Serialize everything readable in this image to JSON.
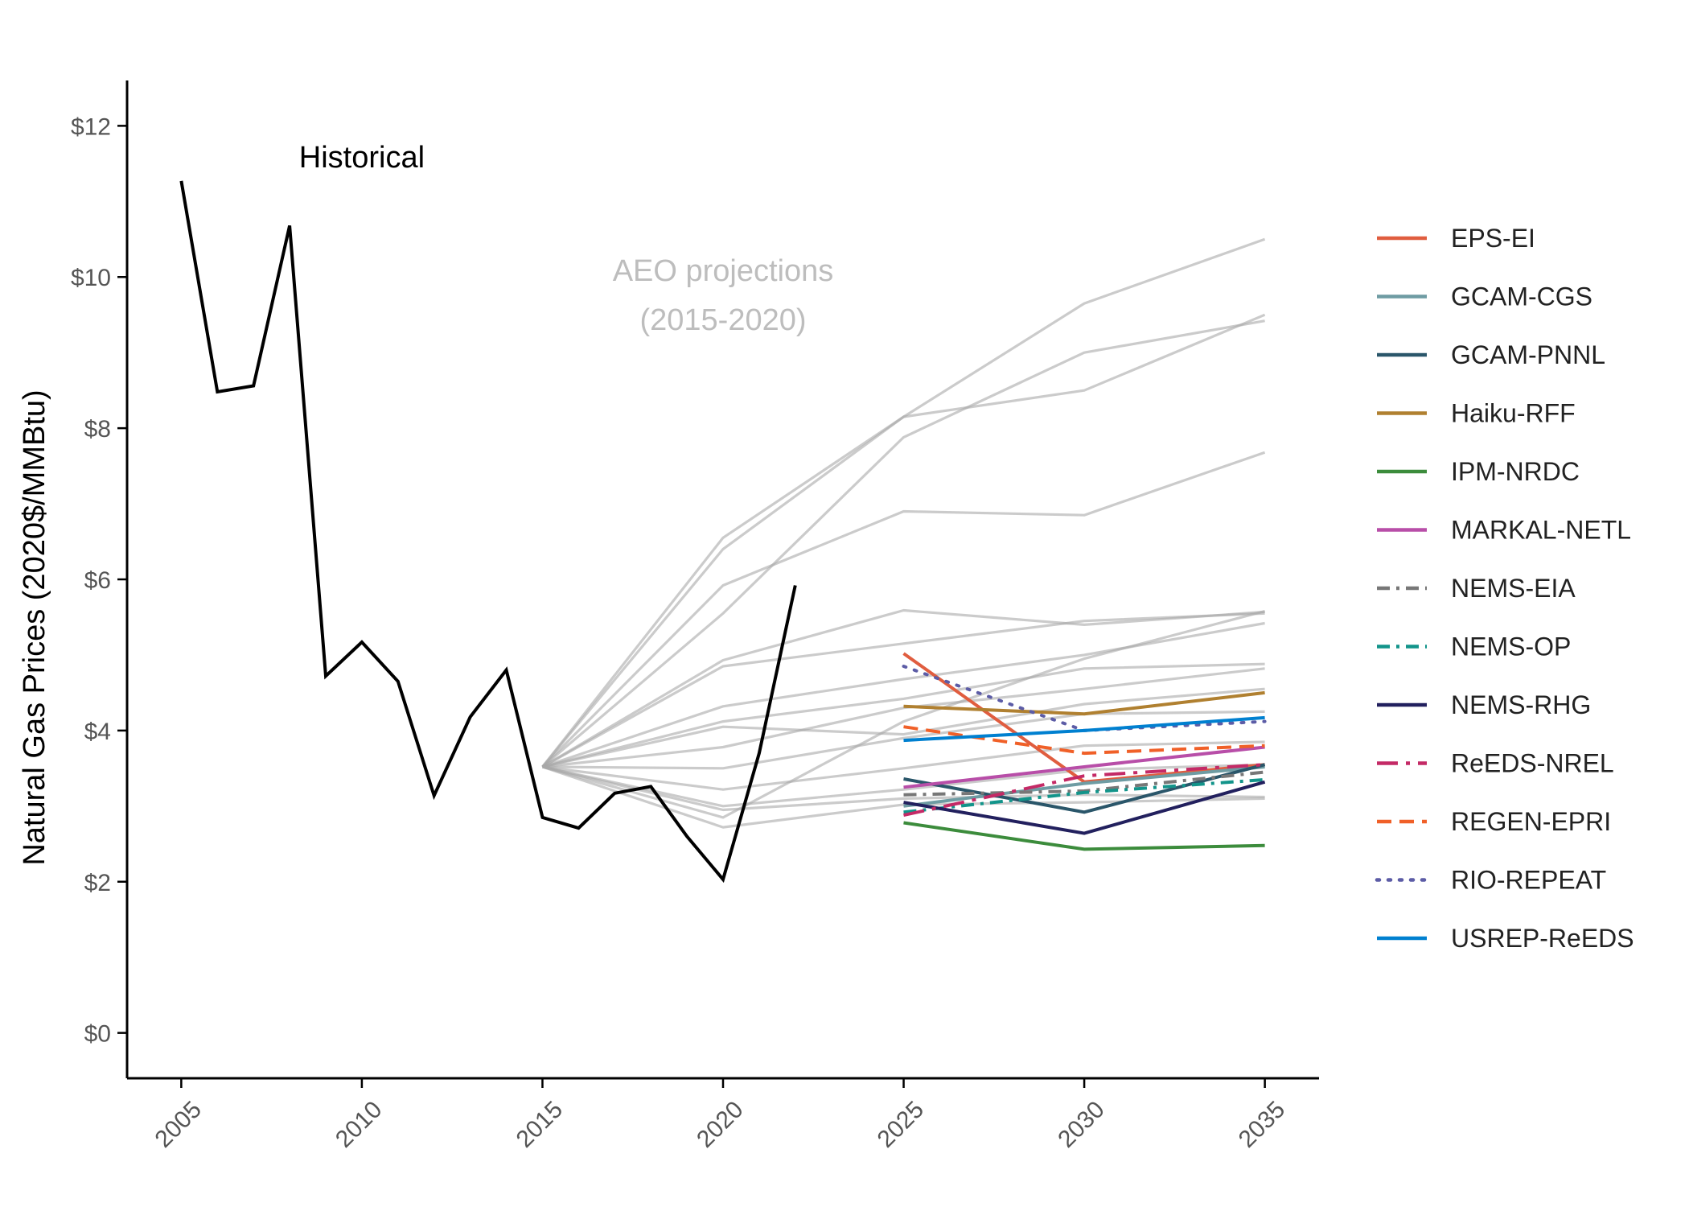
{
  "chart_data": {
    "type": "line",
    "title": "",
    "xlabel": "",
    "ylabel": "Natural Gas Prices (2020$/MMBtu)",
    "xlim": [
      2003.5,
      2036.5
    ],
    "ylim": [
      -0.6,
      12.6
    ],
    "x_ticks": [
      2005,
      2010,
      2015,
      2020,
      2025,
      2030,
      2035
    ],
    "x_tick_labels": [
      "2005",
      "2010",
      "2015",
      "2020",
      "2025",
      "2030",
      "2035"
    ],
    "y_ticks": [
      0,
      2,
      4,
      6,
      8,
      10,
      12
    ],
    "y_tick_labels": [
      "$0",
      "$2",
      "$4",
      "$6",
      "$8",
      "$10",
      "$12"
    ],
    "grid": false,
    "legend_position": "right",
    "annotations": [
      {
        "text": "Historical",
        "x": 2010,
        "y": 11.45,
        "style": "historical"
      },
      {
        "text": "AEO projections",
        "x": 2020,
        "y": 9.95,
        "style": "aeo"
      },
      {
        "text": "(2015-2020)",
        "x": 2020,
        "y": 9.3,
        "style": "aeo"
      }
    ],
    "historical": {
      "color": "#000000",
      "x": [
        2005,
        2006,
        2007,
        2008,
        2009,
        2010,
        2011,
        2012,
        2013,
        2014,
        2015,
        2016,
        2017,
        2018,
        2019,
        2020,
        2021,
        2022
      ],
      "values": [
        11.27,
        8.48,
        8.56,
        10.68,
        4.72,
        5.17,
        4.65,
        3.14,
        4.18,
        4.8,
        2.85,
        2.71,
        3.17,
        3.26,
        2.6,
        2.03,
        3.7,
        5.92
      ]
    },
    "aeo_projections": {
      "color": "#a8a8a8",
      "x": [
        2015,
        2020,
        2025,
        2030,
        2035
      ],
      "lines": [
        [
          3.52,
          6.55,
          8.15,
          9.65,
          10.5
        ],
        [
          3.52,
          6.4,
          8.15,
          8.5,
          9.5
        ],
        [
          3.52,
          5.55,
          7.88,
          9.0,
          9.42
        ],
        [
          3.52,
          5.92,
          6.9,
          6.85,
          7.68
        ],
        [
          3.52,
          4.93,
          5.59,
          5.4,
          5.57
        ],
        [
          3.52,
          4.85,
          5.15,
          5.45,
          5.55
        ],
        [
          3.52,
          4.32,
          4.68,
          5.0,
          5.42
        ],
        [
          3.52,
          4.12,
          4.42,
          4.82,
          4.88
        ],
        [
          3.52,
          3.78,
          4.3,
          4.55,
          4.82
        ],
        [
          3.52,
          4.05,
          3.95,
          4.35,
          4.55
        ],
        [
          3.52,
          3.5,
          3.9,
          4.22,
          4.25
        ],
        [
          3.52,
          3.22,
          3.5,
          3.8,
          3.85
        ],
        [
          3.52,
          3.0,
          3.22,
          3.48,
          3.55
        ],
        [
          3.52,
          2.95,
          3.1,
          3.15,
          3.12
        ],
        [
          3.52,
          2.72,
          3.02,
          3.05,
          3.1
        ],
        [
          3.52,
          2.85,
          4.12,
          4.95,
          5.58
        ]
      ]
    },
    "x": [
      2025,
      2030,
      2035
    ],
    "series": [
      {
        "name": "EPS-EI",
        "color": "#e05d3f",
        "dash": "solid",
        "values": [
          5.02,
          3.32,
          3.55
        ]
      },
      {
        "name": "GCAM-CGS",
        "color": "#6e9ca3",
        "dash": "solid",
        "values": [
          3.0,
          3.3,
          3.52
        ]
      },
      {
        "name": "GCAM-PNNL",
        "color": "#2a566a",
        "dash": "solid",
        "values": [
          3.36,
          2.92,
          3.55
        ]
      },
      {
        "name": "Haiku-RFF",
        "color": "#b08030",
        "dash": "solid",
        "values": [
          4.32,
          4.22,
          4.5
        ]
      },
      {
        "name": "IPM-NRDC",
        "color": "#3c8c3c",
        "dash": "solid",
        "values": [
          2.78,
          2.43,
          2.48
        ]
      },
      {
        "name": "MARKAL-NETL",
        "color": "#b84ea8",
        "dash": "solid",
        "values": [
          3.25,
          3.52,
          3.78
        ]
      },
      {
        "name": "NEMS-EIA",
        "color": "#777777",
        "dash": "dashdot",
        "values": [
          3.15,
          3.2,
          3.45
        ]
      },
      {
        "name": "NEMS-OP",
        "color": "#12948a",
        "dash": "dashdot",
        "values": [
          2.92,
          3.18,
          3.35
        ]
      },
      {
        "name": "NEMS-RHG",
        "color": "#22205e",
        "dash": "solid",
        "values": [
          3.05,
          2.64,
          3.32
        ]
      },
      {
        "name": "ReEDS-NREL",
        "color": "#c42a66",
        "dash": "longdashdot",
        "values": [
          2.88,
          3.4,
          3.55
        ]
      },
      {
        "name": "REGEN-EPRI",
        "color": "#f06028",
        "dash": "dashed",
        "values": [
          4.05,
          3.7,
          3.8
        ]
      },
      {
        "name": "RIO-REPEAT",
        "color": "#5c5ca6",
        "dash": "dotted",
        "values": [
          4.85,
          4.0,
          4.12
        ]
      },
      {
        "name": "USREP-ReEDS",
        "color": "#0080d0",
        "dash": "solid",
        "values": [
          3.87,
          4.0,
          4.17
        ]
      }
    ]
  }
}
